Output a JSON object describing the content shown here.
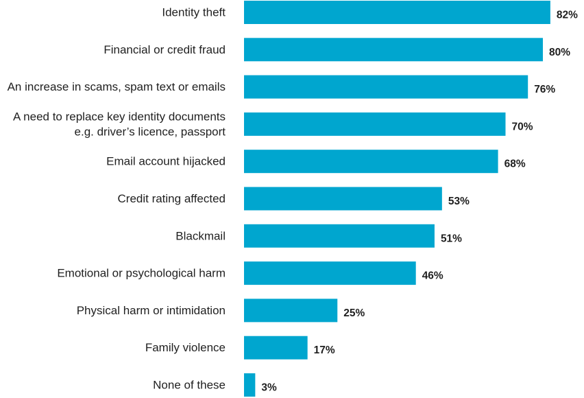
{
  "chart_data": {
    "type": "bar",
    "orientation": "horizontal",
    "title": "",
    "xlabel": "",
    "ylabel": "",
    "xlim": [
      0,
      100
    ],
    "grid": false,
    "legend": "none",
    "color": "#00a6cf",
    "categories": [
      [
        "Identity theft"
      ],
      [
        "Financial or credit fraud"
      ],
      [
        "An increase in scams, spam text or emails"
      ],
      [
        "A need to replace key identity documents",
        "e.g. driver’s licence, passport"
      ],
      [
        "Email account hijacked"
      ],
      [
        "Credit rating affected"
      ],
      [
        "Blackmail"
      ],
      [
        "Emotional or psychological harm"
      ],
      [
        "Physical harm or intimidation"
      ],
      [
        "Family violence"
      ],
      [
        "None of these"
      ]
    ],
    "values": [
      82,
      80,
      76,
      70,
      68,
      53,
      51,
      46,
      25,
      17,
      3
    ],
    "value_labels": [
      "82%",
      "80%",
      "76%",
      "70%",
      "68%",
      "53%",
      "51%",
      "46%",
      "25%",
      "17%",
      "3%"
    ]
  }
}
